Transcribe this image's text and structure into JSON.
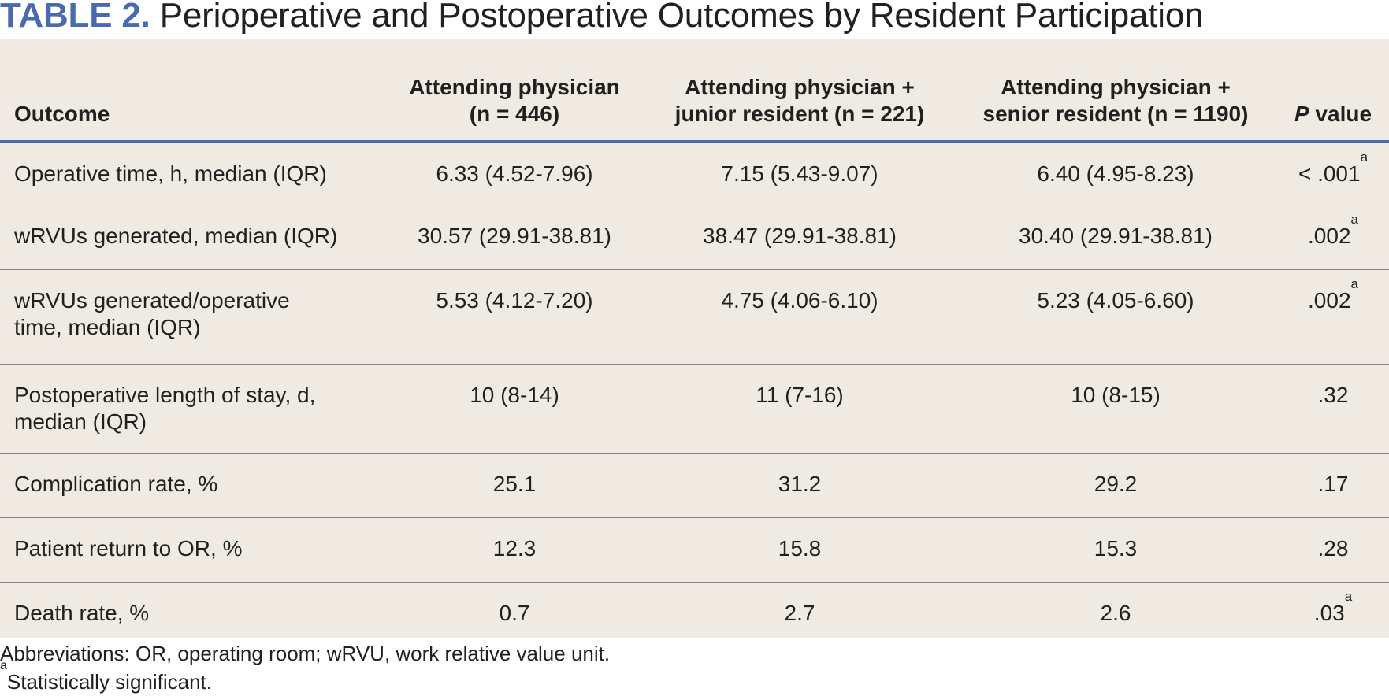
{
  "title": {
    "label": "TABLE 2.",
    "text": "Perioperative and Postoperative Outcomes by Resident Participation"
  },
  "table": {
    "headers": [
      {
        "line1": "Outcome",
        "line2": ""
      },
      {
        "line1": "Attending physician",
        "line2": "(n = 446)"
      },
      {
        "line1": "Attending physician +",
        "line2": "junior resident (n = 221)"
      },
      {
        "line1": "Attending physician +",
        "line2": "senior resident (n = 1190)"
      },
      {
        "italic": "P",
        "rest": " value"
      }
    ],
    "rows": [
      {
        "outcome": "Operative time, h, median (IQR)",
        "att": "6.33 (4.52-7.96)",
        "junior": "7.15 (5.43-9.07)",
        "senior": "6.40 (4.95-8.23)",
        "p": "< .001",
        "sig": "a"
      },
      {
        "outcome": "wRVUs generated, median (IQR)",
        "att": "30.57 (29.91-38.81)",
        "junior": "38.47 (29.91-38.81)",
        "senior": "30.40 (29.91-38.81)",
        "p": ".002",
        "sig": "a"
      },
      {
        "outcome_line1": "wRVUs generated/operative",
        "outcome_line2": "time, median (IQR)",
        "att": "5.53 (4.12-7.20)",
        "junior": "4.75 (4.06-6.10)",
        "senior": "5.23 (4.05-6.60)",
        "p": ".002",
        "sig": "a"
      },
      {
        "outcome_line1": "Postoperative length of stay, d,",
        "outcome_line2": "median (IQR)",
        "att": "10 (8-14)",
        "junior": "11 (7-16)",
        "senior": "10 (8-15)",
        "p": ".32",
        "sig": ""
      },
      {
        "outcome": "Complication rate, %",
        "att": "25.1",
        "junior": "31.2",
        "senior": "29.2",
        "p": ".17",
        "sig": ""
      },
      {
        "outcome": "Patient return to OR, %",
        "att": "12.3",
        "junior": "15.8",
        "senior": "15.3",
        "p": ".28",
        "sig": ""
      },
      {
        "outcome": "Death rate, %",
        "att": "0.7",
        "junior": "2.7",
        "senior": "2.6",
        "p": ".03",
        "sig": "a"
      }
    ]
  },
  "footnotes": {
    "abbreviations": "Abbreviations: OR, operating room; wRVU, work relative value unit.",
    "sig_marker": "a",
    "sig_text": "Statistically significant."
  },
  "colors": {
    "accent": "#4a6ab0",
    "table_background": "#efebe2",
    "text": "#231f20",
    "row_divider": "#8a8580"
  }
}
